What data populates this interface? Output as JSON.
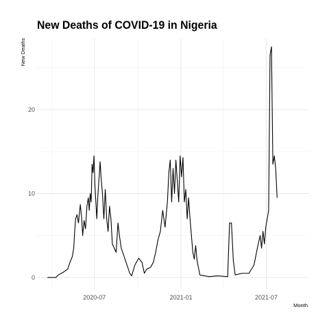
{
  "chart_data": {
    "type": "line",
    "title": "New Deaths of COVID-19 in Nigeria",
    "xlabel": "Month",
    "ylabel": "New Deaths",
    "x_ticks": [
      {
        "date": "2020-07-01",
        "label": "2020-07"
      },
      {
        "date": "2021-01-01",
        "label": "2021-01"
      },
      {
        "date": "2021-07-01",
        "label": "2021-07"
      }
    ],
    "y_ticks": [
      0,
      10,
      20
    ],
    "xlim": [
      "2020-03-01",
      "2021-09-30"
    ],
    "ylim": [
      -1.4,
      28.5
    ],
    "grid": true,
    "theme": "minimal",
    "line_color": "#000000",
    "series": [
      {
        "points": [
          [
            "2020-03-23",
            0
          ],
          [
            "2020-04-10",
            0
          ],
          [
            "2020-04-15",
            0.3
          ],
          [
            "2020-04-25",
            0.6
          ],
          [
            "2020-05-05",
            1.0
          ],
          [
            "2020-05-10",
            1.8
          ],
          [
            "2020-05-15",
            2.5
          ],
          [
            "2020-05-18",
            3.5
          ],
          [
            "2020-05-20",
            5.5
          ],
          [
            "2020-05-22",
            7.0
          ],
          [
            "2020-05-25",
            7.5
          ],
          [
            "2020-05-28",
            6.5
          ],
          [
            "2020-06-01",
            8.7
          ],
          [
            "2020-06-04",
            7.0
          ],
          [
            "2020-06-06",
            5.0
          ],
          [
            "2020-06-09",
            6.8
          ],
          [
            "2020-06-12",
            5.8
          ],
          [
            "2020-06-15",
            8.5
          ],
          [
            "2020-06-18",
            9.5
          ],
          [
            "2020-06-20",
            8.0
          ],
          [
            "2020-06-22",
            10.0
          ],
          [
            "2020-06-24",
            9.0
          ],
          [
            "2020-06-26",
            13.5
          ],
          [
            "2020-06-28",
            12.5
          ],
          [
            "2020-06-30",
            14.5
          ],
          [
            "2020-07-02",
            11.0
          ],
          [
            "2020-07-04",
            9.0
          ],
          [
            "2020-07-06",
            7.0
          ],
          [
            "2020-07-08",
            9.5
          ],
          [
            "2020-07-11",
            12.0
          ],
          [
            "2020-07-13",
            13.8
          ],
          [
            "2020-07-15",
            12.0
          ],
          [
            "2020-07-18",
            10.0
          ],
          [
            "2020-07-21",
            7.0
          ],
          [
            "2020-07-24",
            10.5
          ],
          [
            "2020-07-27",
            7.0
          ],
          [
            "2020-07-30",
            5.5
          ],
          [
            "2020-08-02",
            8.5
          ],
          [
            "2020-08-05",
            7.0
          ],
          [
            "2020-08-08",
            4.0
          ],
          [
            "2020-08-12",
            3.5
          ],
          [
            "2020-08-16",
            3.0
          ],
          [
            "2020-08-20",
            6.5
          ],
          [
            "2020-08-23",
            5.0
          ],
          [
            "2020-08-27",
            3.5
          ],
          [
            "2020-09-02",
            2.5
          ],
          [
            "2020-09-08",
            1.5
          ],
          [
            "2020-09-14",
            0.5
          ],
          [
            "2020-09-18",
            0.2
          ],
          [
            "2020-09-25",
            1.5
          ],
          [
            "2020-10-03",
            2.3
          ],
          [
            "2020-10-10",
            1.8
          ],
          [
            "2020-10-15",
            0.5
          ],
          [
            "2020-10-20",
            1.0
          ],
          [
            "2020-10-28",
            1.2
          ],
          [
            "2020-11-03",
            1.8
          ],
          [
            "2020-11-08",
            3.0
          ],
          [
            "2020-11-13",
            4.5
          ],
          [
            "2020-11-18",
            5.5
          ],
          [
            "2020-11-23",
            8.0
          ],
          [
            "2020-11-28",
            6.0
          ],
          [
            "2020-12-03",
            9.0
          ],
          [
            "2020-12-06",
            12.5
          ],
          [
            "2020-12-09",
            14.0
          ],
          [
            "2020-12-12",
            9.0
          ],
          [
            "2020-12-15",
            13.0
          ],
          [
            "2020-12-18",
            10.0
          ],
          [
            "2020-12-21",
            14.0
          ],
          [
            "2020-12-24",
            11.5
          ],
          [
            "2020-12-27",
            9.0
          ],
          [
            "2020-12-30",
            14.5
          ],
          [
            "2021-01-02",
            12.0
          ],
          [
            "2021-01-05",
            14.3
          ],
          [
            "2021-01-08",
            9.0
          ],
          [
            "2021-01-11",
            10.5
          ],
          [
            "2021-01-14",
            7.0
          ],
          [
            "2021-01-17",
            9.5
          ],
          [
            "2021-01-20",
            7.0
          ],
          [
            "2021-01-23",
            5.0
          ],
          [
            "2021-01-26",
            3.0
          ],
          [
            "2021-01-29",
            2.2
          ],
          [
            "2021-02-01",
            3.8
          ],
          [
            "2021-02-04",
            2.0
          ],
          [
            "2021-02-10",
            0.3
          ],
          [
            "2021-02-20",
            0.2
          ],
          [
            "2021-03-01",
            0.1
          ],
          [
            "2021-03-20",
            0.2
          ],
          [
            "2021-04-10",
            0.1
          ],
          [
            "2021-04-14",
            6.5
          ],
          [
            "2021-04-18",
            6.5
          ],
          [
            "2021-04-22",
            2.0
          ],
          [
            "2021-04-26",
            0.3
          ],
          [
            "2021-05-10",
            0.5
          ],
          [
            "2021-05-25",
            0.5
          ],
          [
            "2021-06-05",
            1.5
          ],
          [
            "2021-06-12",
            3.5
          ],
          [
            "2021-06-18",
            5.0
          ],
          [
            "2021-06-21",
            3.5
          ],
          [
            "2021-06-24",
            5.5
          ],
          [
            "2021-06-27",
            4.0
          ],
          [
            "2021-06-30",
            6.0
          ],
          [
            "2021-07-03",
            7.0
          ],
          [
            "2021-07-06",
            8.0
          ],
          [
            "2021-07-09",
            26.5
          ],
          [
            "2021-07-12",
            27.5
          ],
          [
            "2021-07-15",
            13.5
          ],
          [
            "2021-07-18",
            14.5
          ],
          [
            "2021-07-21",
            13.0
          ],
          [
            "2021-07-24",
            9.5
          ]
        ]
      }
    ]
  }
}
